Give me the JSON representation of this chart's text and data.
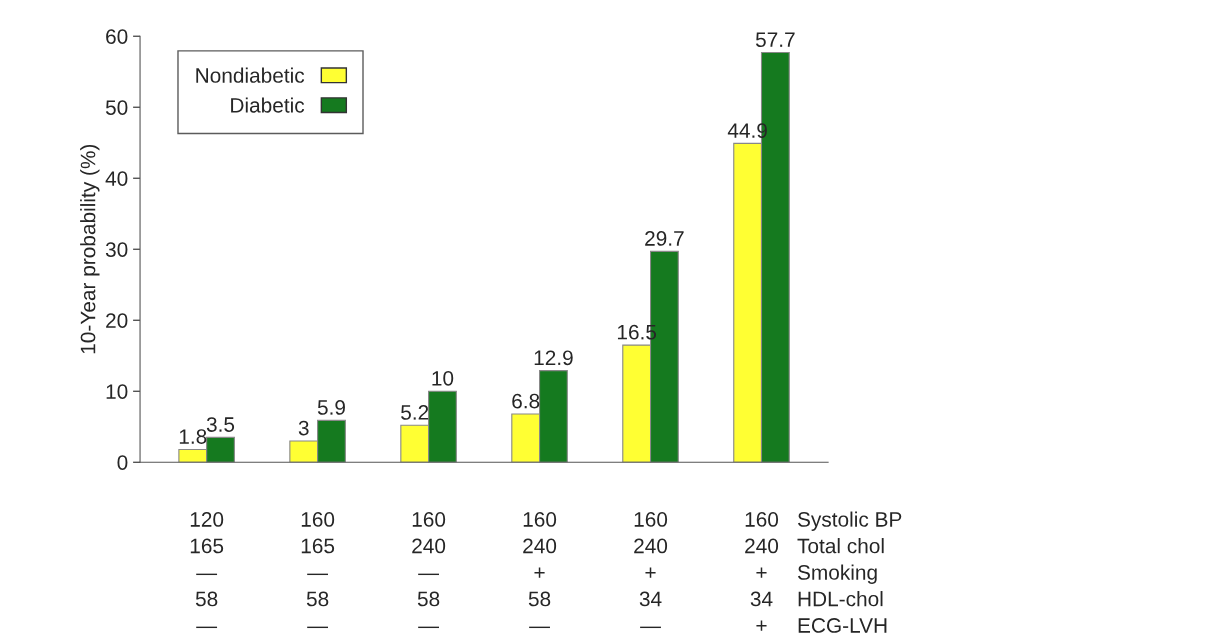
{
  "chart_data": {
    "type": "bar",
    "ylabel": "10-Year probability (%)",
    "categories": [
      "120\n165\n—\n58\n—",
      "160\n165\n—\n58\n—",
      "160\n240\n—\n58\n—",
      "160\n240\n+\n58\n—",
      "160\n240\n+\n34\n—",
      "160\n240\n+\n34\n+"
    ],
    "series": [
      {
        "name": "Nondiabetic",
        "color": "#ffff33",
        "values": [
          1.8,
          3,
          5.2,
          6.8,
          16.5,
          44.9
        ]
      },
      {
        "name": "Diabetic",
        "color": "#157a1f",
        "values": [
          3.5,
          5.9,
          10,
          12.9,
          29.7,
          57.7
        ]
      }
    ],
    "annotations": [
      "Systolic BP",
      "Total chol",
      "Smoking",
      "HDL-chol",
      "ECG-LVH"
    ],
    "ylim": [
      0,
      60
    ],
    "yticks": [
      0,
      10,
      20,
      30,
      40,
      50,
      60
    ],
    "data_labels": true,
    "legend": "top left",
    "grid": false
  }
}
